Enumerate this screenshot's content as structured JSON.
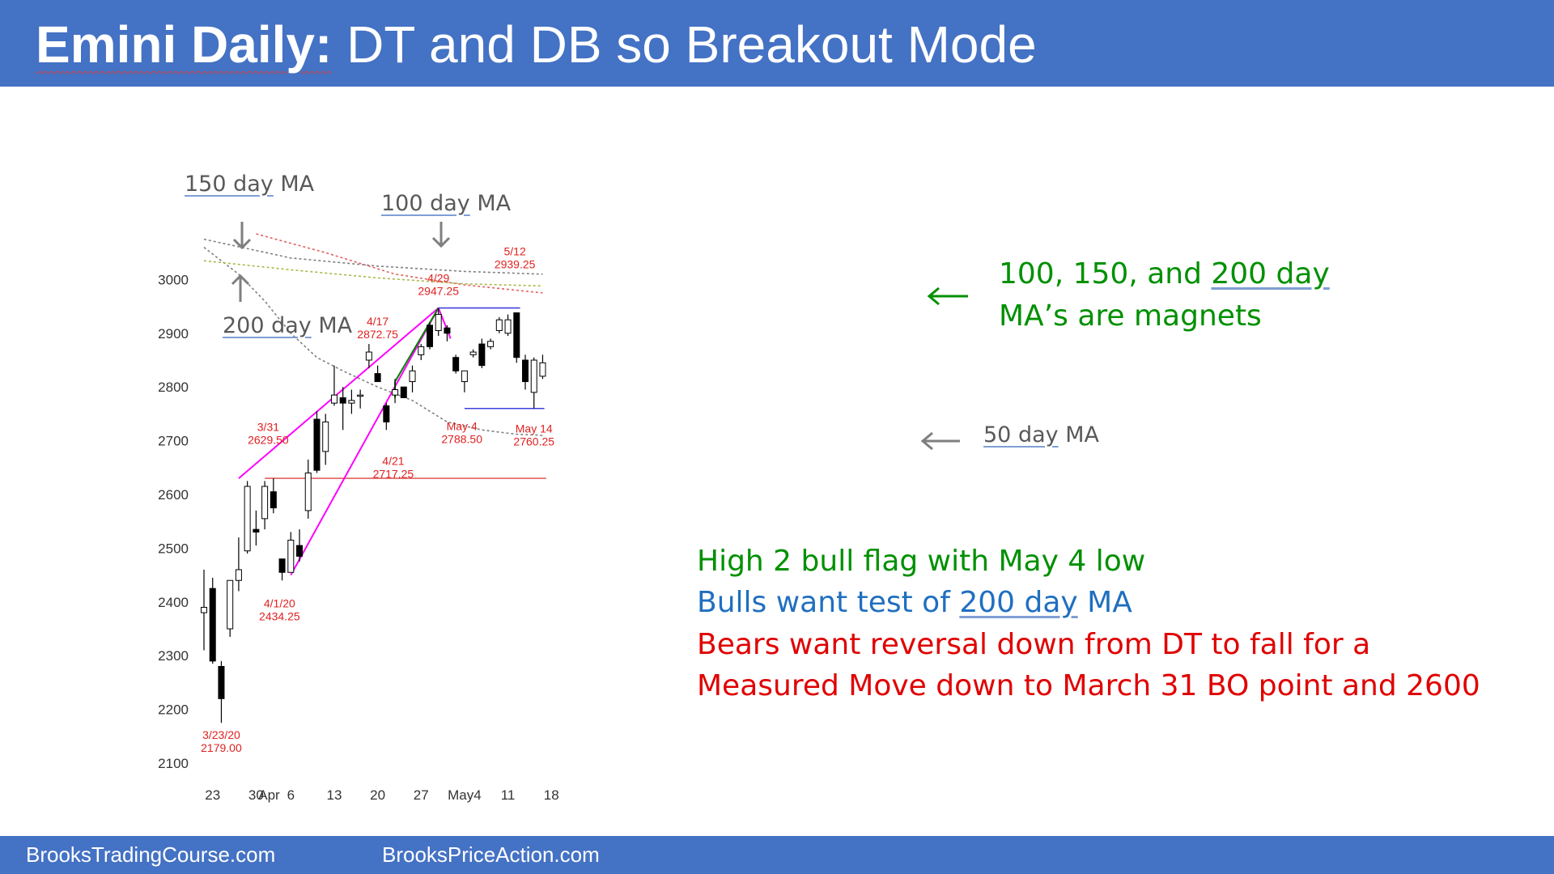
{
  "header": {
    "title_bold": "Emini Daily:",
    "title_rest": "DT and DB so Breakout Mode",
    "color": "#4472c4"
  },
  "footer": {
    "left": "BrooksTradingCourse.com",
    "right": "BrooksPriceAction.com"
  },
  "chart_data": {
    "type": "candlestick",
    "ylim": [
      2100,
      3000
    ],
    "yticks": [
      3000,
      2900,
      2800,
      2700,
      2600,
      2500,
      2400,
      2300,
      2200,
      2100
    ],
    "xticks": [
      {
        "label": "23",
        "idx": 1
      },
      {
        "label": "30",
        "idx": 6
      },
      {
        "label": "Apr",
        "idx": 7.5
      },
      {
        "label": "6",
        "idx": 10
      },
      {
        "label": "13",
        "idx": 15
      },
      {
        "label": "20",
        "idx": 20
      },
      {
        "label": "27",
        "idx": 25
      },
      {
        "label": "May4",
        "idx": 30
      },
      {
        "label": "11",
        "idx": 35
      },
      {
        "label": "18",
        "idx": 40
      }
    ],
    "candles": [
      {
        "o": 2380,
        "h": 2460,
        "l": 2310,
        "c": 2390
      },
      {
        "o": 2425,
        "h": 2445,
        "l": 2285,
        "c": 2290
      },
      {
        "o": 2280,
        "h": 2290,
        "l": 2175,
        "c": 2220
      },
      {
        "o": 2350,
        "h": 2440,
        "l": 2335,
        "c": 2440
      },
      {
        "o": 2440,
        "h": 2520,
        "l": 2420,
        "c": 2460
      },
      {
        "o": 2495,
        "h": 2625,
        "l": 2490,
        "c": 2615
      },
      {
        "o": 2535,
        "h": 2570,
        "l": 2505,
        "c": 2530
      },
      {
        "o": 2555,
        "h": 2625,
        "l": 2535,
        "c": 2615
      },
      {
        "o": 2605,
        "h": 2630,
        "l": 2565,
        "c": 2575
      },
      {
        "o": 2480,
        "h": 2480,
        "l": 2440,
        "c": 2455
      },
      {
        "o": 2455,
        "h": 2530,
        "l": 2455,
        "c": 2515
      },
      {
        "o": 2505,
        "h": 2535,
        "l": 2475,
        "c": 2485
      },
      {
        "o": 2570,
        "h": 2665,
        "l": 2555,
        "c": 2640
      },
      {
        "o": 2740,
        "h": 2755,
        "l": 2640,
        "c": 2645
      },
      {
        "o": 2680,
        "h": 2750,
        "l": 2655,
        "c": 2735
      },
      {
        "o": 2770,
        "h": 2840,
        "l": 2765,
        "c": 2785
      },
      {
        "o": 2780,
        "h": 2800,
        "l": 2720,
        "c": 2770
      },
      {
        "o": 2770,
        "h": 2795,
        "l": 2750,
        "c": 2775
      },
      {
        "o": 2785,
        "h": 2795,
        "l": 2760,
        "c": 2785
      },
      {
        "o": 2850,
        "h": 2880,
        "l": 2835,
        "c": 2865
      },
      {
        "o": 2825,
        "h": 2840,
        "l": 2810,
        "c": 2810
      },
      {
        "o": 2765,
        "h": 2770,
        "l": 2720,
        "c": 2735
      },
      {
        "o": 2785,
        "h": 2815,
        "l": 2770,
        "c": 2795
      },
      {
        "o": 2800,
        "h": 2800,
        "l": 2780,
        "c": 2780
      },
      {
        "o": 2810,
        "h": 2840,
        "l": 2790,
        "c": 2830
      },
      {
        "o": 2860,
        "h": 2880,
        "l": 2850,
        "c": 2875
      },
      {
        "o": 2915,
        "h": 2920,
        "l": 2870,
        "c": 2875
      },
      {
        "o": 2905,
        "h": 2947,
        "l": 2895,
        "c": 2935
      },
      {
        "o": 2910,
        "h": 2915,
        "l": 2885,
        "c": 2900
      },
      {
        "o": 2855,
        "h": 2860,
        "l": 2825,
        "c": 2830
      },
      {
        "o": 2810,
        "h": 2830,
        "l": 2790,
        "c": 2830
      },
      {
        "o": 2860,
        "h": 2870,
        "l": 2855,
        "c": 2865
      },
      {
        "o": 2880,
        "h": 2890,
        "l": 2835,
        "c": 2840
      },
      {
        "o": 2875,
        "h": 2890,
        "l": 2870,
        "c": 2885
      },
      {
        "o": 2905,
        "h": 2930,
        "l": 2900,
        "c": 2925
      },
      {
        "o": 2900,
        "h": 2935,
        "l": 2895,
        "c": 2925
      },
      {
        "o": 2938,
        "h": 2939,
        "l": 2845,
        "c": 2855
      },
      {
        "o": 2850,
        "h": 2860,
        "l": 2795,
        "c": 2810
      },
      {
        "o": 2790,
        "h": 2855,
        "l": 2760,
        "c": 2850
      },
      {
        "o": 2820,
        "h": 2860,
        "l": 2815,
        "c": 2845
      }
    ],
    "moving_averages": [
      {
        "label": "50 day MA",
        "color": "#7f7f7f",
        "points": [
          [
            0,
            3060
          ],
          [
            4,
            3010
          ],
          [
            7,
            2960
          ],
          [
            10,
            2900
          ],
          [
            13,
            2855
          ],
          [
            16,
            2830
          ],
          [
            20,
            2800
          ],
          [
            24,
            2775
          ],
          [
            28,
            2735
          ],
          [
            32,
            2720
          ],
          [
            36,
            2712
          ],
          [
            39,
            2710
          ]
        ]
      },
      {
        "label": "100 day MA",
        "color": "#e26060",
        "points": [
          [
            6,
            3085
          ],
          [
            14,
            3050
          ],
          [
            22,
            3010
          ],
          [
            30,
            2990
          ],
          [
            39,
            2975
          ]
        ]
      },
      {
        "label": "150 day MA",
        "color": "#7f7f7f",
        "points": [
          [
            0,
            3075
          ],
          [
            10,
            3040
          ],
          [
            20,
            3025
          ],
          [
            30,
            3015
          ],
          [
            39,
            3010
          ]
        ]
      },
      {
        "label": "200 day MA",
        "color": "#a8b84a",
        "points": [
          [
            0,
            3035
          ],
          [
            10,
            3018
          ],
          [
            20,
            3003
          ],
          [
            30,
            2992
          ],
          [
            39,
            2988
          ]
        ]
      }
    ],
    "trendlines": [
      {
        "color": "#ff00ff",
        "from": [
          4,
          2630
        ],
        "to": [
          27,
          2947
        ]
      },
      {
        "color": "#ff00ff",
        "from": [
          10,
          2450
        ],
        "to": [
          27,
          2947
        ]
      },
      {
        "color": "#ff00ff",
        "from": [
          27,
          2947
        ],
        "to": [
          28.4,
          2890
        ]
      },
      {
        "color": "#008000",
        "from": [
          22,
          2810
        ],
        "to": [
          27,
          2947
        ]
      },
      {
        "color": "#008000",
        "from": [
          22,
          2810
        ],
        "to": [
          22,
          2780
        ]
      }
    ],
    "levels": [
      {
        "color": "#4040e0",
        "y": 2947,
        "from": 27,
        "to": 36.4
      },
      {
        "color": "#4040e0",
        "y": 2760,
        "from": 30,
        "to": 39.2
      },
      {
        "color": "#e06060",
        "y": 2630,
        "from": 7,
        "to": 39.4
      }
    ],
    "labels": [
      {
        "date": "3/23/20",
        "value": "2179.00",
        "idx": 2,
        "y": 2145
      },
      {
        "date": "3/31",
        "value": "2629.50",
        "idx": 7.4,
        "y": 2718
      },
      {
        "date": "4/1/20",
        "value": "2434.25",
        "idx": 8.7,
        "y": 2390
      },
      {
        "date": "4/17",
        "value": "2872.75",
        "idx": 20,
        "y": 2915
      },
      {
        "date": "4/21",
        "value": "2717.25",
        "idx": 21.8,
        "y": 2655
      },
      {
        "date": "4/29",
        "value": "2947.25",
        "idx": 27,
        "y": 2995
      },
      {
        "date": "May 4",
        "value": "2788.50",
        "idx": 29.7,
        "y": 2720
      },
      {
        "date": "5/12",
        "value": "2939.25",
        "idx": 35.8,
        "y": 3045
      },
      {
        "date": "May 14",
        "value": "2760.25",
        "idx": 38,
        "y": 2715
      }
    ],
    "ma_labels": [
      {
        "text_a": "150 day",
        "text_b": "MA"
      },
      {
        "text_a": "100 day",
        "text_b": "MA"
      },
      {
        "text_a": "200 day",
        "text_b": "MA"
      },
      {
        "text_a": "50 day",
        "text_b": "MA"
      }
    ]
  },
  "notes": {
    "magnets_line1_a": "100, 150, and ",
    "magnets_line1_b": "200 day",
    "magnets_line2": "MA’s are magnets",
    "line1": "High 2 bull flag with May 4 low",
    "line2_a": "Bulls want test of ",
    "line2_b": "200 day",
    "line2_c": " MA",
    "line3": "Bears want reversal down from DT to fall for a",
    "line4": "Measured Move down to March 31 BO point and 2600"
  },
  "colors": {
    "green": "#009000",
    "blue": "#1f6fc0",
    "red": "#e00000",
    "gray": "#7f7f7f",
    "label_red": "#e02020"
  }
}
